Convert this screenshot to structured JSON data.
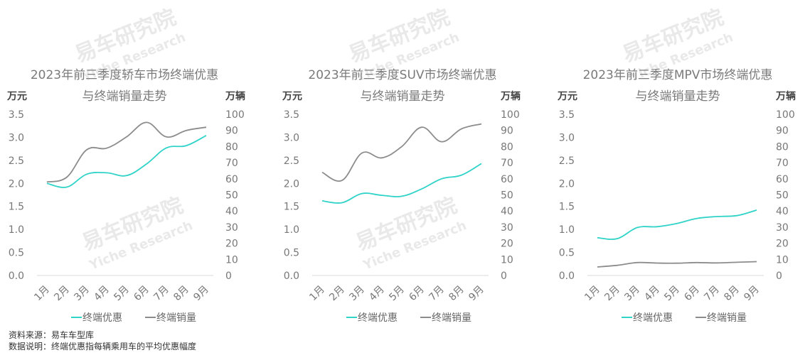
{
  "chart_data": [
    {
      "type": "line",
      "title": "2023年前三季度轿车市场终端优惠",
      "subtitle": "与终端销量走势",
      "ylabel_left": "万元",
      "ylabel_right": "万辆",
      "categories": [
        "1月",
        "2月",
        "3月",
        "4月",
        "5月",
        "6月",
        "7月",
        "8月",
        "9月"
      ],
      "ylim_left": [
        0,
        3.5
      ],
      "ylim_right": [
        0,
        100
      ],
      "yticks_left": [
        "0.0",
        "0.5",
        "1.0",
        "1.5",
        "2.0",
        "2.5",
        "3.0",
        "3.5"
      ],
      "yticks_right": [
        "0",
        "10",
        "20",
        "30",
        "40",
        "50",
        "60",
        "70",
        "80",
        "90",
        "100"
      ],
      "series": [
        {
          "name": "终端优惠",
          "axis": "left",
          "color": "#2fd3c8",
          "values": [
            2.0,
            1.92,
            2.2,
            2.23,
            2.17,
            2.42,
            2.77,
            2.82,
            3.04
          ]
        },
        {
          "name": "终端销量",
          "axis": "right",
          "color": "#8c8c8c",
          "values": [
            58,
            61,
            78,
            79,
            86,
            95,
            86,
            90,
            92
          ]
        }
      ],
      "legend": "bottom"
    },
    {
      "type": "line",
      "title": "2023年前三季度SUV市场终端优惠",
      "subtitle": "与终端销量走势",
      "ylabel_left": "万元",
      "ylabel_right": "万辆",
      "categories": [
        "1月",
        "2月",
        "3月",
        "4月",
        "5月",
        "6月",
        "7月",
        "8月",
        "9月"
      ],
      "ylim_left": [
        0,
        3.5
      ],
      "ylim_right": [
        0,
        100
      ],
      "yticks_left": [
        "0.0",
        "0.5",
        "1.0",
        "1.5",
        "2.0",
        "2.5",
        "3.0",
        "3.5"
      ],
      "yticks_right": [
        "0",
        "10",
        "20",
        "30",
        "40",
        "50",
        "60",
        "70",
        "80",
        "90",
        "100"
      ],
      "series": [
        {
          "name": "终端优惠",
          "axis": "left",
          "color": "#2fd3c8",
          "values": [
            1.62,
            1.58,
            1.78,
            1.74,
            1.72,
            1.88,
            2.1,
            2.18,
            2.43
          ]
        },
        {
          "name": "终端销量",
          "axis": "right",
          "color": "#8c8c8c",
          "values": [
            64,
            59,
            76,
            73,
            80,
            92,
            83,
            91,
            94
          ]
        }
      ],
      "legend": "bottom"
    },
    {
      "type": "line",
      "title": "2023年前三季度MPV市场终端优惠",
      "subtitle": "与终端销量走势",
      "ylabel_left": "万元",
      "ylabel_right": "万辆",
      "categories": [
        "1月",
        "2月",
        "3月",
        "4月",
        "5月",
        "6月",
        "7月",
        "8月",
        "9月"
      ],
      "ylim_left": [
        0,
        3.5
      ],
      "ylim_right": [
        0,
        100
      ],
      "yticks_left": [
        "0.0",
        "0.5",
        "1.0",
        "1.5",
        "2.0",
        "2.5",
        "3.0",
        "3.5"
      ],
      "yticks_right": [
        "0",
        "10",
        "20",
        "30",
        "40",
        "50",
        "60",
        "70",
        "80",
        "90",
        "100"
      ],
      "series": [
        {
          "name": "终端优惠",
          "axis": "left",
          "color": "#2fd3c8",
          "values": [
            0.82,
            0.8,
            1.04,
            1.06,
            1.13,
            1.24,
            1.28,
            1.3,
            1.42
          ]
        },
        {
          "name": "终端销量",
          "axis": "right",
          "color": "#8c8c8c",
          "values": [
            5.3,
            6.3,
            8.0,
            7.7,
            7.6,
            8.0,
            7.8,
            8.2,
            8.6
          ]
        }
      ],
      "legend": "bottom"
    }
  ],
  "watermark": {
    "cn": "易车研究院",
    "en": "Yiche Research"
  },
  "footer": {
    "source": "资料来源：易车车型库",
    "note": "数据说明：终端优惠指每辆乘用车的平均优惠幅度"
  }
}
